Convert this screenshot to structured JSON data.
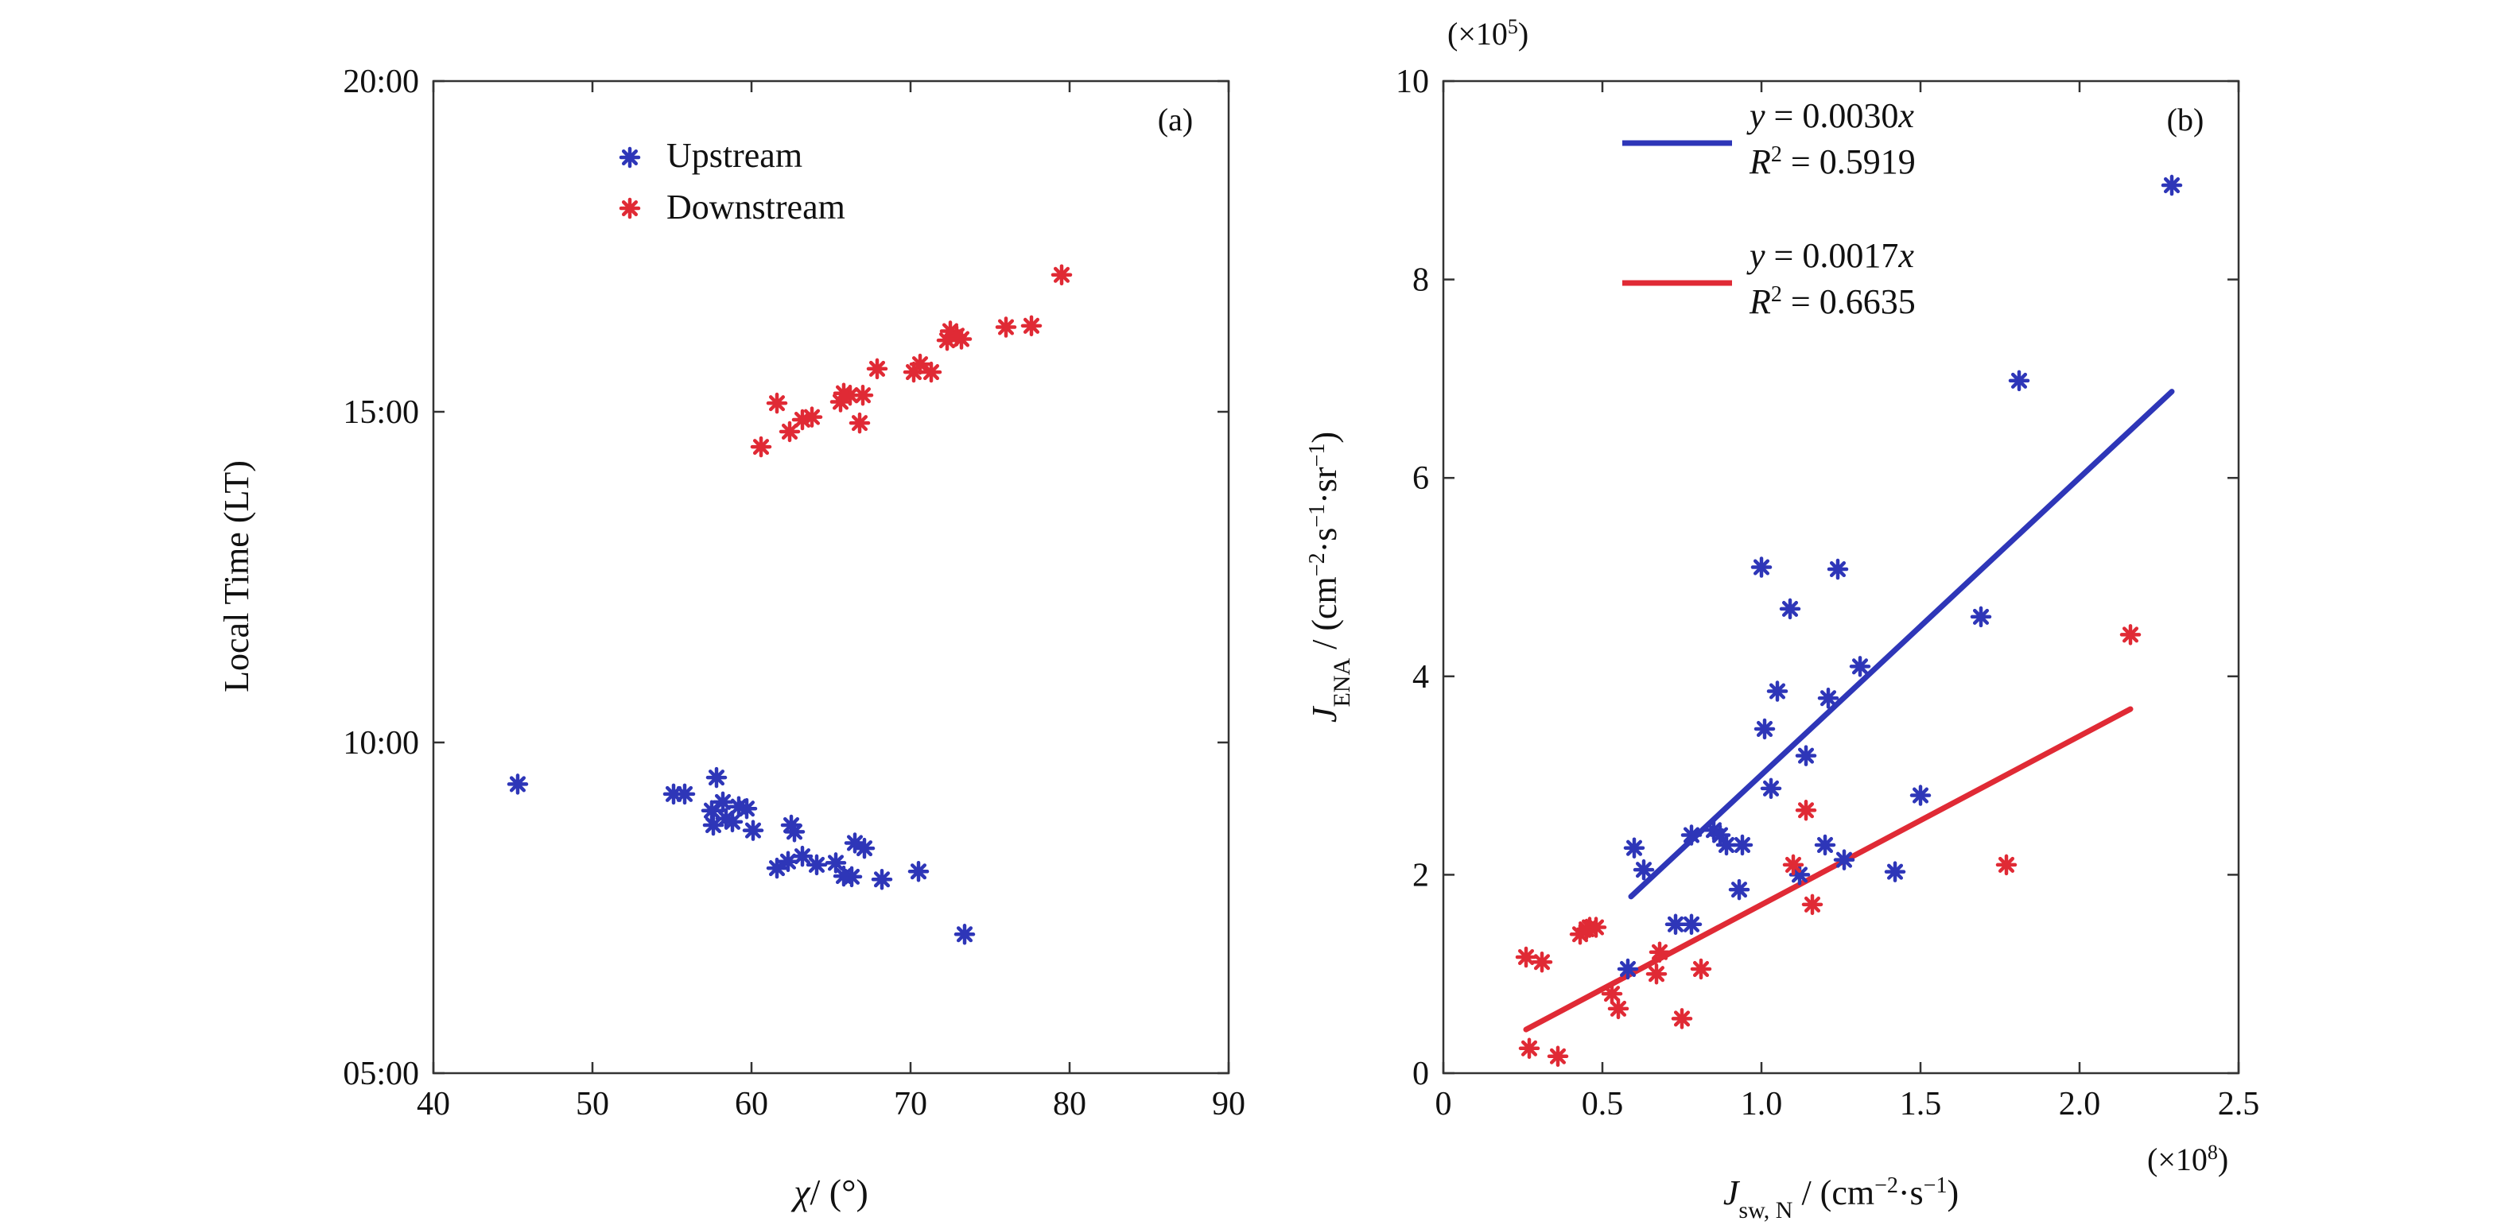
{
  "chart_data": [
    {
      "panel_label": "(a)",
      "type": "scatter",
      "xlabel_var": "χ",
      "xlabel_unit": "/ (°)",
      "ylabel": "Local Time (LT)",
      "xlim": [
        40,
        90
      ],
      "ylim": [
        5,
        20
      ],
      "x_ticks": [
        40,
        50,
        60,
        70,
        80,
        90
      ],
      "y_ticks": [
        {
          "value": 5,
          "label": "05:00"
        },
        {
          "value": 10,
          "label": "10:00"
        },
        {
          "value": 15,
          "label": "15:00"
        },
        {
          "value": 20,
          "label": "20:00"
        }
      ],
      "legend_position": "top-center",
      "series": [
        {
          "name": "Upstream",
          "color": "#2e36b8",
          "points": [
            [
              45.3,
              9.37
            ],
            [
              55.1,
              9.22
            ],
            [
              55.8,
              9.22
            ],
            [
              57.5,
              8.97
            ],
            [
              57.6,
              8.75
            ],
            [
              57.8,
              9.47
            ],
            [
              58.2,
              9.1
            ],
            [
              58.4,
              8.85
            ],
            [
              58.8,
              8.8
            ],
            [
              59.2,
              9.03
            ],
            [
              59.7,
              9.0
            ],
            [
              60.1,
              8.67
            ],
            [
              61.6,
              8.1
            ],
            [
              62.3,
              8.2
            ],
            [
              62.5,
              8.75
            ],
            [
              62.7,
              8.65
            ],
            [
              63.2,
              8.28
            ],
            [
              64.1,
              8.15
            ],
            [
              65.3,
              8.18
            ],
            [
              65.8,
              7.98
            ],
            [
              66.3,
              7.97
            ],
            [
              66.5,
              8.48
            ],
            [
              67.1,
              8.4
            ],
            [
              68.2,
              7.93
            ],
            [
              70.5,
              8.05
            ],
            [
              73.4,
              7.1
            ]
          ]
        },
        {
          "name": "Downstream",
          "color": "#e02a35",
          "points": [
            [
              60.6,
              14.47
            ],
            [
              61.6,
              15.13
            ],
            [
              62.4,
              14.7
            ],
            [
              63.2,
              14.88
            ],
            [
              63.8,
              14.92
            ],
            [
              65.6,
              15.15
            ],
            [
              65.8,
              15.28
            ],
            [
              66.2,
              15.25
            ],
            [
              66.8,
              14.83
            ],
            [
              67.0,
              15.25
            ],
            [
              67.9,
              15.65
            ],
            [
              70.2,
              15.6
            ],
            [
              70.6,
              15.72
            ],
            [
              71.3,
              15.6
            ],
            [
              72.3,
              16.08
            ],
            [
              72.5,
              16.22
            ],
            [
              72.9,
              16.15
            ],
            [
              73.2,
              16.1
            ],
            [
              76.0,
              16.28
            ],
            [
              77.6,
              16.3
            ],
            [
              79.5,
              17.07
            ]
          ]
        }
      ]
    },
    {
      "panel_label": "(b)",
      "type": "scatter",
      "xlabel_var": "J",
      "xlabel_sub": "sw, N",
      "xlabel_unit": " / (cm",
      "xlabel_unit_sup1": "−2",
      "xlabel_unit_mid": "·s",
      "xlabel_unit_sup2": "−1",
      "xlabel_unit_end": ")",
      "x_multiplier_base": "(×10",
      "x_multiplier_exp": "8",
      "x_multiplier_end": ")",
      "ylabel_var": "J",
      "ylabel_sub": "ENA",
      "ylabel_unit": " / (cm",
      "ylabel_sup1": "−2",
      "ylabel_mid1": "·s",
      "ylabel_sup2": "−1",
      "ylabel_mid2": "·sr",
      "ylabel_sup3": "−1",
      "ylabel_end": ")",
      "y_multiplier_base": "(×10",
      "y_multiplier_exp": "5",
      "y_multiplier_end": ")",
      "xlim": [
        0,
        2.5
      ],
      "ylim": [
        0,
        10
      ],
      "x_ticks": [
        {
          "value": 0,
          "label": "0"
        },
        {
          "value": 0.5,
          "label": "0.5"
        },
        {
          "value": 1.0,
          "label": "1.0"
        },
        {
          "value": 1.5,
          "label": "1.5"
        },
        {
          "value": 2.0,
          "label": "2.0"
        },
        {
          "value": 2.5,
          "label": "2.5"
        }
      ],
      "y_ticks": [
        {
          "value": 0,
          "label": "0"
        },
        {
          "value": 2,
          "label": "2"
        },
        {
          "value": 4,
          "label": "4"
        },
        {
          "value": 6,
          "label": "6"
        },
        {
          "value": 8,
          "label": "8"
        },
        {
          "value": 10,
          "label": "10"
        }
      ],
      "legend_position": "top-center",
      "fits": [
        {
          "color": "#2e36b8",
          "eq_lhs": "y",
          "eq_rhs": " = 0.0030",
          "eq_var": "x",
          "r2_lhs": "R",
          "r2_exp": "2",
          "r2_rhs": " = 0.5919",
          "x_range": [
            0.59,
            2.29
          ],
          "y_range": [
            1.78,
            6.87
          ]
        },
        {
          "color": "#e02a35",
          "eq_lhs": "y",
          "eq_rhs": " = 0.0017",
          "eq_var": "x",
          "r2_lhs": "R",
          "r2_exp": "2",
          "r2_rhs": " = 0.6635",
          "x_range": [
            0.26,
            2.16
          ],
          "y_range": [
            0.44,
            3.67
          ]
        }
      ],
      "series": [
        {
          "color": "#2e36b8",
          "points": [
            [
              0.58,
              1.05
            ],
            [
              0.6,
              2.27
            ],
            [
              0.63,
              2.05
            ],
            [
              0.73,
              1.5
            ],
            [
              0.78,
              1.5
            ],
            [
              0.78,
              2.4
            ],
            [
              0.85,
              2.45
            ],
            [
              0.87,
              2.4
            ],
            [
              0.89,
              2.3
            ],
            [
              0.93,
              1.85
            ],
            [
              0.94,
              2.3
            ],
            [
              1.0,
              5.1
            ],
            [
              1.01,
              3.47
            ],
            [
              1.03,
              2.87
            ],
            [
              1.05,
              3.85
            ],
            [
              1.09,
              4.68
            ],
            [
              1.12,
              2.0
            ],
            [
              1.14,
              3.2
            ],
            [
              1.2,
              2.3
            ],
            [
              1.21,
              3.78
            ],
            [
              1.24,
              5.08
            ],
            [
              1.26,
              2.15
            ],
            [
              1.31,
              4.1
            ],
            [
              1.42,
              2.03
            ],
            [
              1.5,
              2.8
            ],
            [
              1.69,
              4.6
            ],
            [
              1.81,
              6.98
            ],
            [
              2.29,
              8.95
            ]
          ]
        },
        {
          "color": "#e02a35",
          "points": [
            [
              0.26,
              1.17
            ],
            [
              0.27,
              0.25
            ],
            [
              0.31,
              1.12
            ],
            [
              0.36,
              0.17
            ],
            [
              0.43,
              1.4
            ],
            [
              0.45,
              1.45
            ],
            [
              0.46,
              1.47
            ],
            [
              0.48,
              1.47
            ],
            [
              0.53,
              0.8
            ],
            [
              0.55,
              0.65
            ],
            [
              0.67,
              1.0
            ],
            [
              0.68,
              1.22
            ],
            [
              0.75,
              0.55
            ],
            [
              0.81,
              1.05
            ],
            [
              1.1,
              2.1
            ],
            [
              1.14,
              2.65
            ],
            [
              1.16,
              1.7
            ],
            [
              1.77,
              2.1
            ],
            [
              2.16,
              4.42
            ]
          ]
        }
      ]
    }
  ]
}
